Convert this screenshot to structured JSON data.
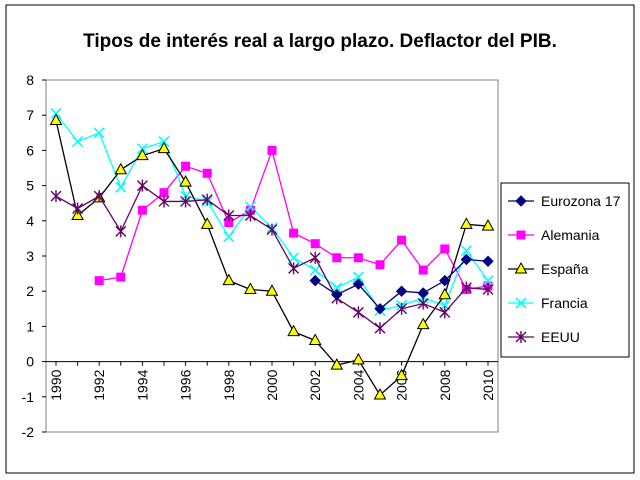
{
  "chart_data": {
    "type": "line",
    "title": "Tipos de interés real a largo plazo. Deflactor del PIB.",
    "xlabel": "",
    "ylabel": "",
    "ylim": [
      -2,
      8
    ],
    "yticks": [
      -2,
      -1,
      0,
      1,
      2,
      3,
      4,
      5,
      6,
      7,
      8
    ],
    "xlim": [
      1990,
      2010
    ],
    "x": [
      1990,
      1991,
      1992,
      1993,
      1994,
      1995,
      1996,
      1997,
      1998,
      1999,
      2000,
      2001,
      2002,
      2003,
      2004,
      2005,
      2006,
      2007,
      2008,
      2009,
      2010
    ],
    "xtick_labels": [
      "1990",
      "1992",
      "1994",
      "1996",
      "1998",
      "2000",
      "2002",
      "2004",
      "2006",
      "2008",
      "2010"
    ],
    "grid": false,
    "legend_position": "right",
    "series": [
      {
        "name": "Eurozona 17",
        "color": "#000080",
        "marker": "diamond",
        "values": [
          null,
          null,
          null,
          null,
          null,
          null,
          null,
          null,
          null,
          null,
          null,
          null,
          2.3,
          1.9,
          2.2,
          1.5,
          2.0,
          1.95,
          2.3,
          2.9,
          2.85
        ]
      },
      {
        "name": "Alemania",
        "color": "#FF00FF",
        "marker": "square",
        "values": [
          null,
          null,
          2.3,
          2.4,
          4.3,
          4.8,
          5.55,
          5.35,
          3.95,
          4.3,
          6.0,
          3.65,
          3.35,
          2.95,
          2.95,
          2.75,
          3.45,
          2.6,
          3.2,
          2.05,
          2.15
        ]
      },
      {
        "name": "España",
        "color": "#000000",
        "marker": "triangle",
        "values": [
          6.85,
          4.15,
          4.65,
          5.45,
          5.85,
          6.05,
          5.1,
          3.9,
          2.3,
          2.05,
          2.0,
          0.85,
          0.6,
          -0.1,
          0.05,
          -0.95,
          -0.4,
          1.05,
          1.9,
          3.9,
          3.85
        ]
      },
      {
        "name": "Francia",
        "color": "#00FFFF",
        "marker": "x",
        "values": [
          7.05,
          6.25,
          6.5,
          4.95,
          6.05,
          6.25,
          4.7,
          4.55,
          3.55,
          4.4,
          3.8,
          2.95,
          2.6,
          2.1,
          2.4,
          1.45,
          1.6,
          1.8,
          1.6,
          3.15,
          2.3
        ]
      },
      {
        "name": "EEUU",
        "color": "#660066",
        "marker": "star",
        "values": [
          4.7,
          4.35,
          4.7,
          3.7,
          5.0,
          4.55,
          4.55,
          4.6,
          4.15,
          4.15,
          3.75,
          2.65,
          2.95,
          1.8,
          1.4,
          0.95,
          1.5,
          1.65,
          1.4,
          2.1,
          2.05
        ]
      }
    ]
  }
}
